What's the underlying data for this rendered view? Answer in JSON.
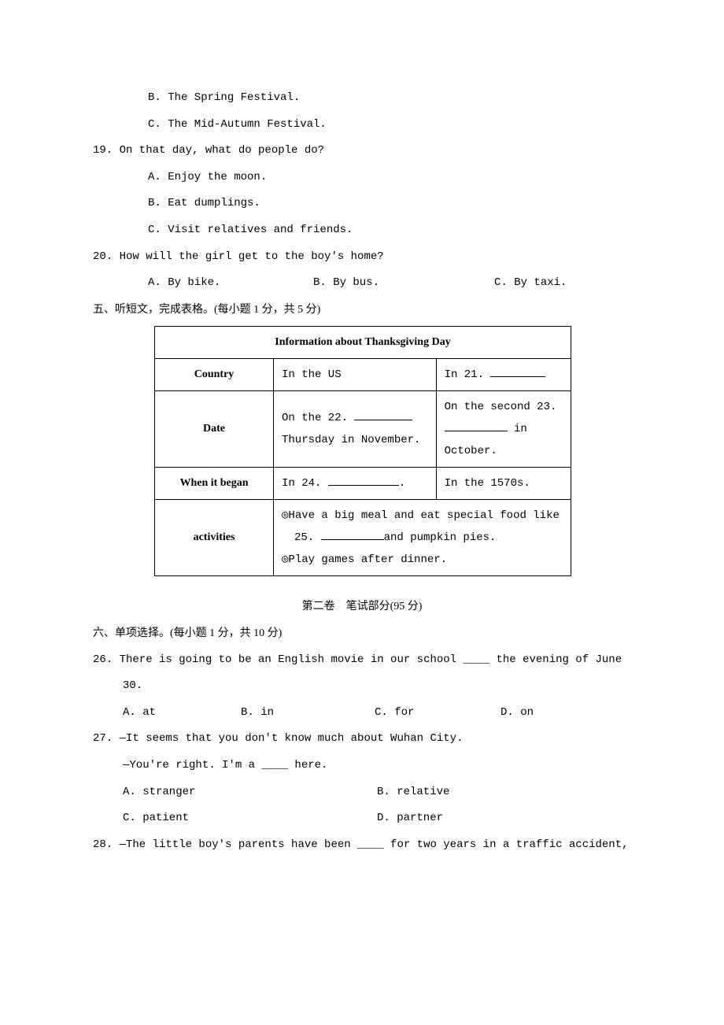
{
  "q18": {
    "optB": "B. The Spring Festival.",
    "optC": "C. The Mid-Autumn Festival."
  },
  "q19": {
    "stem": "19. On that day, what do people do?",
    "optA": "A. Enjoy the moon.",
    "optB": "B. Eat dumplings.",
    "optC": "C. Visit relatives and friends."
  },
  "q20": {
    "stem": "20. How will the girl get to the boy's home?",
    "optA": "A. By bike.",
    "optB": "B. By bus.",
    "optC": "C. By taxi."
  },
  "section5": "五、听短文，完成表格。(每小题 1 分，共 5 分)",
  "table": {
    "title": "Information about Thanksgiving Day",
    "row1": {
      "label": "Country",
      "c1": "In the US",
      "c2a": "In 21. "
    },
    "row2": {
      "label": "Date",
      "c1a": "On the 22. ",
      "c1b": "Thursday in November.",
      "c2a": "On the second 23.",
      "c2b": " in",
      "c2c": "October."
    },
    "row3": {
      "label": "When it began",
      "c1a": "In 24. ",
      "c1b": ".",
      "c2": "In the 1570s."
    },
    "row4": {
      "label": "activities",
      "l1": "◎Have a big meal and eat special food like",
      "l2a": "25. ",
      "l2b": "and pumpkin pies.",
      "l3": "◎Play games after dinner."
    }
  },
  "part2_title": "第二卷　笔试部分(95 分)",
  "section6": "六、单项选择。(每小题 1 分，共 10 分)",
  "q26": {
    "stem1": "26. There is going to be an English movie in our school ____ the evening of June",
    "stem2": "30.",
    "optA": "A. at",
    "optB": "B. in",
    "optC": "C. for",
    "optD": "D. on"
  },
  "q27": {
    "stem1": "27. —It seems that you don't know much about Wuhan City.",
    "stem2": "—You're right. I'm a ____ here.",
    "optA": "A. stranger",
    "optB": "B. relative",
    "optC": "C. patient",
    "optD": "D. partner"
  },
  "q28": {
    "stem": "28. —The little boy's parents have been ____ for two years in a traffic accident,"
  },
  "blank_widths": {
    "w21": 70,
    "w22": 74,
    "w23": 80,
    "w24": 90,
    "w25": 80
  }
}
